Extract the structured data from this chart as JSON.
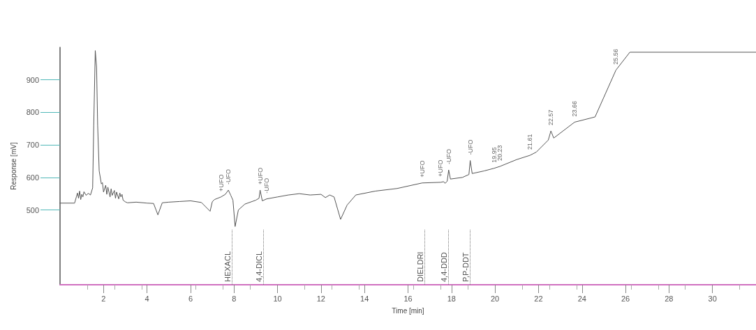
{
  "chart_data": {
    "type": "line",
    "xlabel": "Time [min]",
    "ylabel": "Response [mV]",
    "xlim": [
      0,
      32
    ],
    "xticks": [
      2,
      4,
      6,
      8,
      10,
      12,
      14,
      16,
      18,
      20,
      22,
      24,
      26,
      28,
      30
    ],
    "ylim": [
      270,
      1000
    ],
    "yticks": [
      500,
      600,
      700,
      800,
      900
    ],
    "line_style": "solid",
    "series": [
      {
        "color": "#555555",
        "x": [
          0,
          0.67,
          0.75,
          0.8,
          0.85,
          0.9,
          0.95,
          1.0,
          1.05,
          1.1,
          1.2,
          1.3,
          1.4,
          1.5,
          1.55,
          1.62,
          1.68,
          1.73,
          1.8,
          1.9,
          1.95,
          2.0,
          2.1,
          2.15,
          2.2,
          2.3,
          2.35,
          2.4,
          2.5,
          2.55,
          2.6,
          2.7,
          2.75,
          2.8,
          2.85,
          2.9,
          3.0,
          3.1,
          3.5,
          4.0,
          4.3,
          4.5,
          4.7,
          5.0,
          5.5,
          6.0,
          6.5,
          6.9,
          7.0,
          7.1,
          7.4,
          7.6,
          7.74,
          7.85,
          7.95,
          8.05,
          8.2,
          8.5,
          9.0,
          9.15,
          9.2,
          9.3,
          9.5,
          10.0,
          10.5,
          11.0,
          11.5,
          12.0,
          12.2,
          12.4,
          12.6,
          12.9,
          13.2,
          13.6,
          14.5,
          15.5,
          16.65,
          17.5,
          17.64,
          17.7,
          17.8,
          17.87,
          17.95,
          18.5,
          18.8,
          18.86,
          18.95,
          19.5,
          19.95,
          20.23,
          21.0,
          21.61,
          21.9,
          22.45,
          22.57,
          22.7,
          23.66,
          24.6,
          25.56,
          26.2,
          32
        ],
        "values": [
          521,
          521,
          540,
          552,
          536,
          558,
          532,
          548,
          540,
          556,
          545,
          551,
          546,
          568,
          760,
          990,
          940,
          760,
          620,
          580,
          584,
          555,
          576,
          548,
          570,
          540,
          565,
          545,
          560,
          536,
          555,
          534,
          552,
          540,
          548,
          530,
          525,
          522,
          524,
          521,
          520,
          485,
          522,
          524,
          526,
          528,
          523,
          496,
          525,
          532,
          540,
          548,
          561,
          545,
          530,
          449,
          500,
          518,
          530,
          536,
          561,
          528,
          534,
          540,
          546,
          550,
          546,
          548,
          538,
          546,
          540,
          471,
          515,
          546,
          558,
          566,
          583,
          585,
          587,
          582,
          588,
          623,
          595,
          600,
          609,
          652,
          612,
          620,
          628,
          634,
          655,
          668,
          678,
          715,
          743,
          721,
          770,
          786,
          930,
          985,
          985
        ]
      }
    ],
    "ref_lines": [
      {
        "axis": "x",
        "value": 7.9,
        "label": "HEXACL",
        "line_style": "dotted"
      },
      {
        "axis": "x",
        "value": 9.35,
        "label": "4,4-DICL",
        "line_style": "dotted"
      },
      {
        "axis": "x",
        "value": 16.75,
        "label": "DIELDRI",
        "line_style": "dotted"
      },
      {
        "axis": "x",
        "value": 17.85,
        "label": "4,4-DDD",
        "line_style": "dotted"
      },
      {
        "axis": "x",
        "value": 18.85,
        "label": "P,P-DDT",
        "line_style": "dotted"
      }
    ],
    "annotations": [
      {
        "text": "+UFO",
        "x": 7.4,
        "y": 540
      },
      {
        "text": "-UFO",
        "x": 7.74,
        "y": 561
      },
      {
        "text": "+UFO",
        "x": 9.2,
        "y": 561
      },
      {
        "text": "-UFO",
        "x": 9.5,
        "y": 534
      },
      {
        "text": "+UFO",
        "x": 16.65,
        "y": 583
      },
      {
        "text": "+UFO",
        "x": 17.5,
        "y": 585
      },
      {
        "text": "-UFO",
        "x": 17.87,
        "y": 623
      },
      {
        "text": "-UFO",
        "x": 18.86,
        "y": 652
      },
      {
        "text": "19.95",
        "x": 19.95,
        "y": 628
      },
      {
        "text": "20.23",
        "x": 20.23,
        "y": 634
      },
      {
        "text": "21.61",
        "x": 21.61,
        "y": 668
      },
      {
        "text": "22.57",
        "x": 22.57,
        "y": 743
      },
      {
        "text": "23.66",
        "x": 23.66,
        "y": 770
      },
      {
        "text": "25.56",
        "x": 25.56,
        "y": 930
      }
    ]
  }
}
